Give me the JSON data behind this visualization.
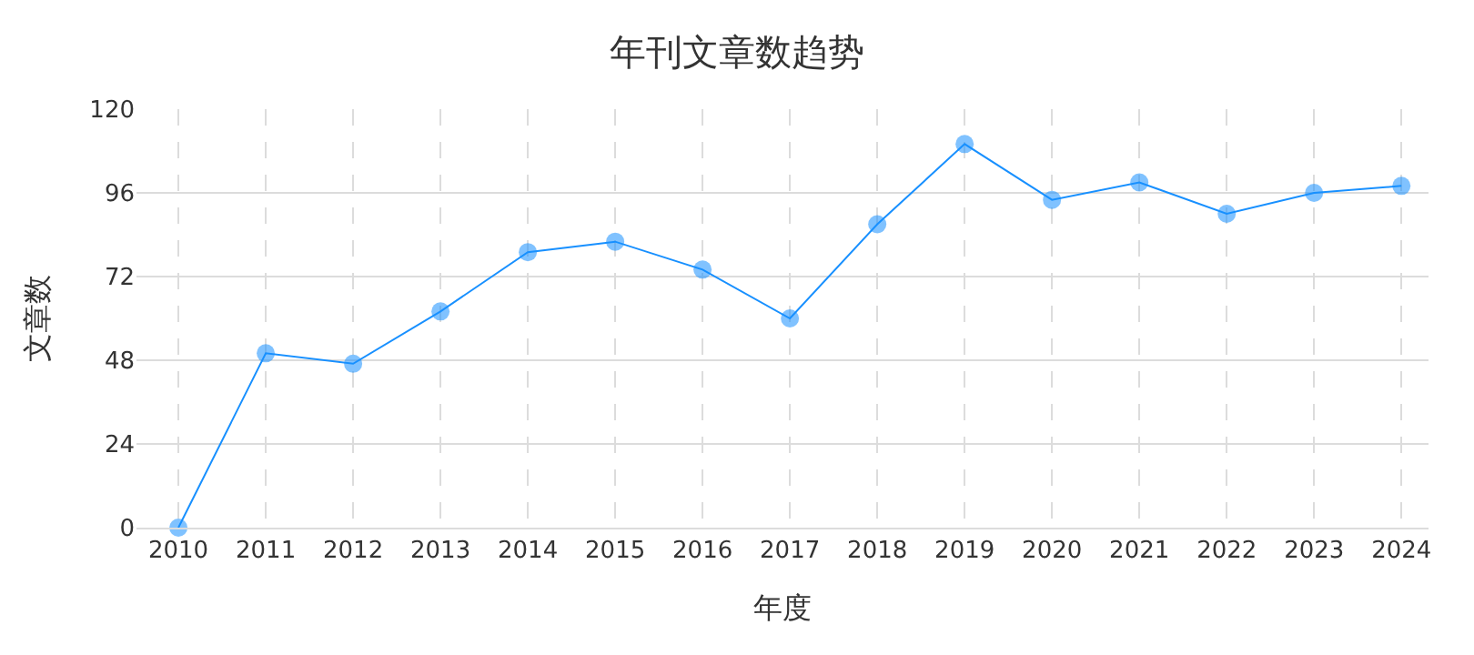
{
  "chart_data": {
    "type": "line",
    "title": "年刊文章数趋势",
    "xlabel": "年度",
    "ylabel": "文章数",
    "categories": [
      "2010",
      "2011",
      "2012",
      "2013",
      "2014",
      "2015",
      "2016",
      "2017",
      "2018",
      "2019",
      "2020",
      "2021",
      "2022",
      "2023",
      "2024"
    ],
    "series": [
      {
        "color": "#1890ff",
        "values": [
          0,
          50,
          47,
          62,
          79,
          82,
          74,
          60,
          87,
          110,
          94,
          99,
          90,
          96,
          98
        ]
      }
    ],
    "ylim": [
      0,
      120
    ],
    "yticks": [
      0,
      24,
      48,
      72,
      96,
      120
    ],
    "grid": true,
    "marker": "circle",
    "line_style": "solid"
  }
}
